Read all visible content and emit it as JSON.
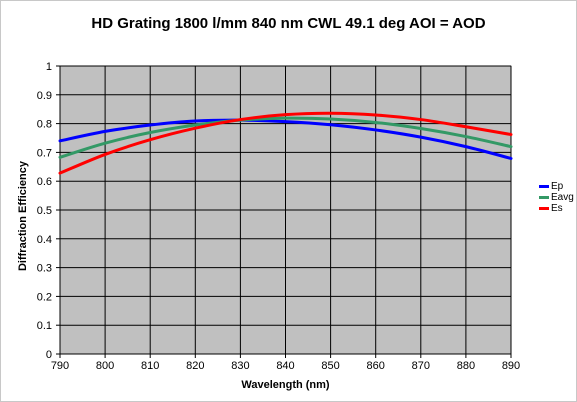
{
  "chart_data": {
    "type": "line",
    "title": "HD Grating 1800 l/mm 840 nm CWL 49.1 deg AOI = AOD",
    "xlabel": "Wavelength (nm)",
    "ylabel": "Diffraction Efficiency",
    "xlim": [
      790,
      890
    ],
    "ylim": [
      0,
      1
    ],
    "x_ticks": [
      790,
      800,
      810,
      820,
      830,
      840,
      850,
      860,
      870,
      880,
      890
    ],
    "y_ticks": [
      0,
      0.1,
      0.2,
      0.3,
      0.4,
      0.5,
      0.6,
      0.7,
      0.8,
      0.9,
      1
    ],
    "grid": true,
    "plot_background": "#c0c0c0",
    "legend_position": "right",
    "x": [
      790,
      800,
      810,
      820,
      830,
      840,
      850,
      860,
      870,
      880,
      890
    ],
    "series": [
      {
        "name": "Ep",
        "color": "#0000ff",
        "values": [
          0.74,
          0.773,
          0.795,
          0.809,
          0.812,
          0.807,
          0.796,
          0.778,
          0.753,
          0.72,
          0.679
        ]
      },
      {
        "name": "Eavg",
        "color": "#339966",
        "values": [
          0.683,
          0.732,
          0.769,
          0.795,
          0.812,
          0.819,
          0.816,
          0.804,
          0.783,
          0.755,
          0.72
        ]
      },
      {
        "name": "Es",
        "color": "#ff0000",
        "values": [
          0.628,
          0.693,
          0.744,
          0.784,
          0.814,
          0.831,
          0.836,
          0.83,
          0.814,
          0.789,
          0.762
        ]
      }
    ]
  }
}
